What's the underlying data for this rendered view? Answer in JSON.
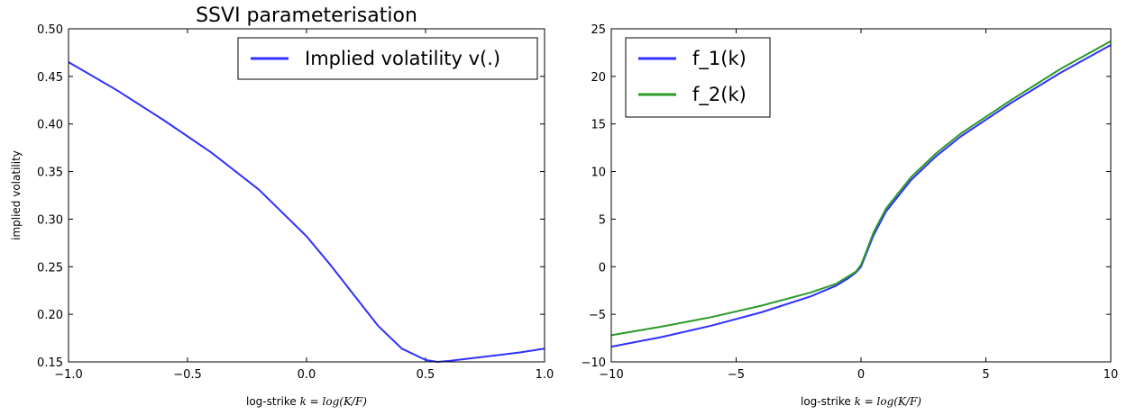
{
  "chart_data": [
    {
      "type": "line",
      "title": "SSVI parameterisation",
      "xlabel_prefix": "log-strike ",
      "xlabel_math": "k = log(K/F)",
      "ylabel": "implied volatility",
      "xlim": [
        -1.0,
        1.0
      ],
      "ylim": [
        0.15,
        0.5
      ],
      "x_ticks": [
        "−1.0",
        "−0.5",
        "0.0",
        "0.5",
        "1.0"
      ],
      "y_ticks": [
        "0.15",
        "0.20",
        "0.25",
        "0.30",
        "0.35",
        "0.40",
        "0.45",
        "0.50"
      ],
      "legend_position": "top-right",
      "series": [
        {
          "name": "Implied volatility v(.)",
          "color": "#3030ff",
          "x": [
            -1.0,
            -0.8,
            -0.6,
            -0.4,
            -0.2,
            0.0,
            0.1,
            0.2,
            0.3,
            0.4,
            0.5,
            0.55,
            0.6,
            0.7,
            0.8,
            0.9,
            1.0
          ],
          "y": [
            0.465,
            0.436,
            0.404,
            0.37,
            0.331,
            0.282,
            0.252,
            0.22,
            0.188,
            0.164,
            0.152,
            0.15,
            0.151,
            0.154,
            0.157,
            0.16,
            0.164
          ]
        }
      ]
    },
    {
      "type": "line",
      "title": "",
      "xlabel_prefix": "log-strike ",
      "xlabel_math": "k = log(K/F)",
      "ylabel": "",
      "xlim": [
        -10,
        10
      ],
      "ylim": [
        -10,
        25
      ],
      "x_ticks": [
        "−10",
        "−5",
        "0",
        "5",
        "10"
      ],
      "y_ticks": [
        "−10",
        "−5",
        "0",
        "5",
        "10",
        "15",
        "20",
        "25"
      ],
      "legend_position": "top-left",
      "series": [
        {
          "name": "f_1(k)",
          "color": "#3030ff",
          "x": [
            -10,
            -8,
            -6,
            -4,
            -2,
            -1,
            -0.5,
            -0.2,
            0,
            0.2,
            0.5,
            1,
            2,
            3,
            4,
            6,
            8,
            10
          ],
          "y": [
            -8.4,
            -7.4,
            -6.2,
            -4.8,
            -3.1,
            -2.0,
            -1.2,
            -0.6,
            0.0,
            1.3,
            3.3,
            5.8,
            9.1,
            11.6,
            13.7,
            17.2,
            20.4,
            23.3
          ]
        },
        {
          "name": "f_2(k)",
          "color": "#2a9a2a",
          "x": [
            -10,
            -8,
            -6,
            -4,
            -2,
            -1,
            -0.5,
            -0.2,
            0,
            0.2,
            0.5,
            1,
            2,
            3,
            4,
            6,
            8,
            10
          ],
          "y": [
            -7.2,
            -6.3,
            -5.3,
            -4.1,
            -2.7,
            -1.8,
            -1.0,
            -0.5,
            0.2,
            1.5,
            3.6,
            6.1,
            9.4,
            11.9,
            14.0,
            17.5,
            20.8,
            23.7
          ]
        }
      ]
    }
  ]
}
